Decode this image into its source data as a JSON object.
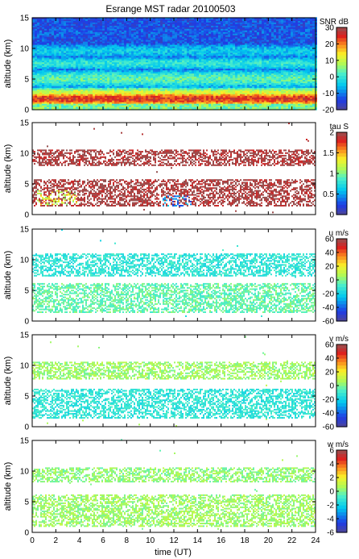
{
  "title": "Esrange MST radar 20100503",
  "x_axis": {
    "label": "time (UT)",
    "min": 0,
    "max": 24,
    "ticks": [
      0,
      2,
      4,
      6,
      8,
      10,
      12,
      14,
      16,
      18,
      20,
      22,
      24
    ]
  },
  "chart_data": [
    {
      "type": "heatmap",
      "name": "SNR",
      "colorbar_label": "SNR dB",
      "ylabel": "altitude (km)",
      "ylim": [
        0,
        15
      ],
      "yticks": [
        0,
        5,
        10,
        15
      ],
      "xlim": [
        0,
        24
      ],
      "clim": [
        -20,
        30
      ],
      "cticks": [
        -20,
        -10,
        0,
        10,
        20,
        30
      ],
      "coverage": "full",
      "layers": [
        {
          "alt": 1.7,
          "value": 25,
          "width": 0.6
        },
        {
          "alt": 2.6,
          "value": 12,
          "width": 0.6
        },
        {
          "alt": 5.0,
          "value": 3,
          "width": 1.0
        },
        {
          "alt": 7.5,
          "value": 0,
          "width": 0.8
        },
        {
          "alt": 9.5,
          "value": -4,
          "width": 1.0
        },
        {
          "alt": 12.5,
          "value": -12,
          "width": 2.0
        }
      ],
      "background_value": -13
    },
    {
      "type": "heatmap",
      "name": "tau",
      "colorbar_label": "tau S",
      "ylabel": "altitude (km)",
      "ylim": [
        0,
        15
      ],
      "yticks": [
        0,
        5,
        10,
        15
      ],
      "xlim": [
        0,
        24
      ],
      "clim": [
        0,
        2
      ],
      "cticks": [
        0,
        0.5,
        1,
        1.5,
        2
      ],
      "coverage": "sparse",
      "bands": [
        {
          "alt_min": 7.8,
          "alt_max": 10.5,
          "value": 1.95
        },
        {
          "alt_min": 1.2,
          "alt_max": 5.5,
          "value": 1.95
        }
      ],
      "low_patches": [
        {
          "t_min": 0.3,
          "t_max": 3.8,
          "alt_min": 1.5,
          "alt_max": 3.8,
          "value": 1.3
        },
        {
          "t_min": 11.0,
          "t_max": 13.5,
          "alt_min": 1.3,
          "alt_max": 3.0,
          "value": 0.4
        }
      ]
    },
    {
      "type": "heatmap",
      "name": "u",
      "colorbar_label": "u m/s",
      "ylabel": "altitude (km)",
      "ylim": [
        0,
        15
      ],
      "yticks": [
        0,
        5,
        10,
        15
      ],
      "xlim": [
        0,
        24
      ],
      "clim": [
        -60,
        60
      ],
      "cticks": [
        -60,
        -40,
        -20,
        0,
        20,
        40,
        60
      ],
      "coverage": "sparse",
      "bands": [
        {
          "alt_min": 7.2,
          "alt_max": 11.0,
          "value": -12
        },
        {
          "alt_min": 1.2,
          "alt_max": 6.0,
          "value": -3
        }
      ]
    },
    {
      "type": "heatmap",
      "name": "v",
      "colorbar_label": "v m/s",
      "ylabel": "altitude (km)",
      "ylim": [
        0,
        15
      ],
      "yticks": [
        0,
        5,
        10,
        15
      ],
      "xlim": [
        0,
        24
      ],
      "clim": [
        -60,
        60
      ],
      "cticks": [
        -60,
        -40,
        -20,
        0,
        20,
        40,
        60
      ],
      "coverage": "sparse",
      "bands": [
        {
          "alt_min": 7.5,
          "alt_max": 10.5,
          "value": 5
        },
        {
          "alt_min": 1.2,
          "alt_max": 6.0,
          "value": -12
        }
      ]
    },
    {
      "type": "heatmap",
      "name": "w",
      "colorbar_label": "w m/s",
      "ylabel": "altitude (km)",
      "ylim": [
        0,
        15
      ],
      "yticks": [
        0,
        5,
        10,
        15
      ],
      "xlim": [
        0,
        24
      ],
      "clim": [
        -6,
        6
      ],
      "cticks": [
        -6,
        -4,
        -2,
        0,
        2,
        4,
        6
      ],
      "coverage": "sparse",
      "bands": [
        {
          "alt_min": 8.0,
          "alt_max": 10.5,
          "value": 0.3
        },
        {
          "alt_min": 0.8,
          "alt_max": 6.0,
          "value": 0.5
        }
      ]
    }
  ]
}
